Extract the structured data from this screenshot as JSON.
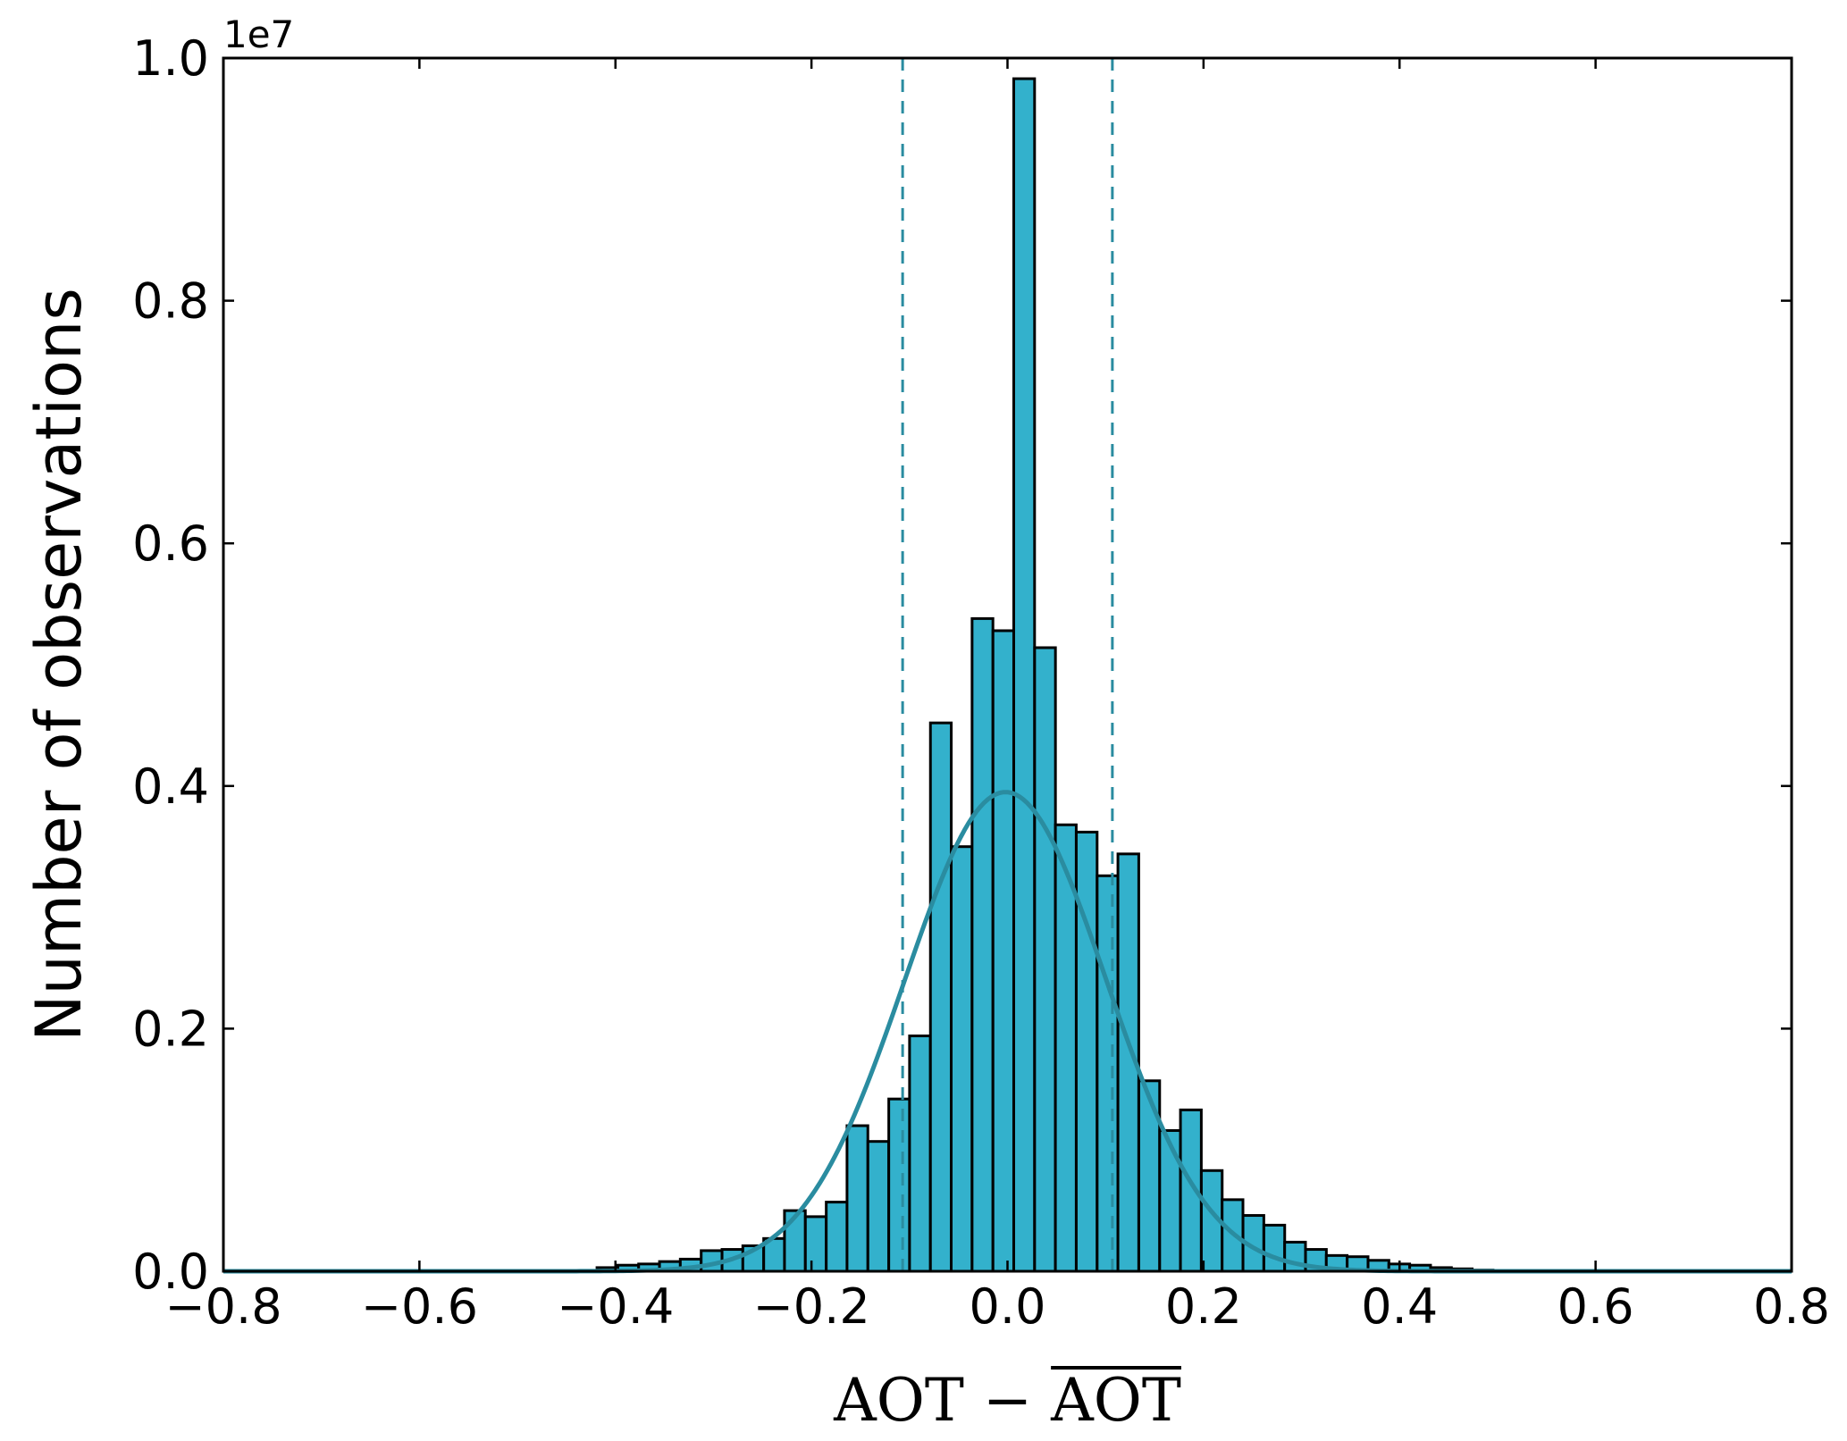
{
  "chart_data": {
    "type": "bar",
    "xlabel": "AOT − AOT",
    "xlabel_overline_part": "AOT",
    "ylabel": "Number of observations",
    "y_offset_label": "1e7",
    "y_scale": 10000000,
    "xlim": [
      -0.8,
      0.8
    ],
    "ylim": [
      0,
      1.0
    ],
    "xticks": [
      -0.8,
      -0.6,
      -0.4,
      -0.2,
      0.0,
      0.2,
      0.4,
      0.6,
      0.8
    ],
    "xtick_labels": [
      "−0.8",
      "−0.6",
      "−0.4",
      "−0.2",
      "0.0",
      "0.2",
      "0.4",
      "0.6",
      "0.8"
    ],
    "yticks": [
      0.0,
      0.2,
      0.4,
      0.6,
      0.8,
      1.0
    ],
    "ytick_labels": [
      "0.0",
      "0.2",
      "0.4",
      "0.6",
      "0.8",
      "1.0"
    ],
    "grid": false,
    "colors": {
      "bar_fill": "#33b1cc",
      "bar_edge": "#000000",
      "curve": "#2a8ca0",
      "dashed": "#2a8ca0"
    },
    "bin_width": 0.02126,
    "bins": [
      {
        "x": -0.4082,
        "y": 0.003
      },
      {
        "x": -0.3869,
        "y": 0.005
      },
      {
        "x": -0.3657,
        "y": 0.006
      },
      {
        "x": -0.3444,
        "y": 0.008
      },
      {
        "x": -0.3232,
        "y": 0.01
      },
      {
        "x": -0.3019,
        "y": 0.017
      },
      {
        "x": -0.2806,
        "y": 0.018
      },
      {
        "x": -0.2594,
        "y": 0.021
      },
      {
        "x": -0.2381,
        "y": 0.027
      },
      {
        "x": -0.2169,
        "y": 0.05
      },
      {
        "x": -0.1956,
        "y": 0.045
      },
      {
        "x": -0.1743,
        "y": 0.057
      },
      {
        "x": -0.1531,
        "y": 0.12
      },
      {
        "x": -0.1318,
        "y": 0.107
      },
      {
        "x": -0.1105,
        "y": 0.142
      },
      {
        "x": -0.0893,
        "y": 0.194
      },
      {
        "x": -0.068,
        "y": 0.452
      },
      {
        "x": -0.0468,
        "y": 0.35
      },
      {
        "x": -0.0255,
        "y": 0.538
      },
      {
        "x": -0.0042,
        "y": 0.528
      },
      {
        "x": 0.017,
        "y": 0.983
      },
      {
        "x": 0.0383,
        "y": 0.514
      },
      {
        "x": 0.0595,
        "y": 0.368
      },
      {
        "x": 0.0808,
        "y": 0.362
      },
      {
        "x": 0.1021,
        "y": 0.326
      },
      {
        "x": 0.1233,
        "y": 0.344
      },
      {
        "x": 0.1446,
        "y": 0.157
      },
      {
        "x": 0.1659,
        "y": 0.116
      },
      {
        "x": 0.1871,
        "y": 0.133
      },
      {
        "x": 0.2084,
        "y": 0.083
      },
      {
        "x": 0.2296,
        "y": 0.059
      },
      {
        "x": 0.2509,
        "y": 0.046
      },
      {
        "x": 0.2722,
        "y": 0.038
      },
      {
        "x": 0.2934,
        "y": 0.024
      },
      {
        "x": 0.3147,
        "y": 0.018
      },
      {
        "x": 0.3359,
        "y": 0.013
      },
      {
        "x": 0.3572,
        "y": 0.012
      },
      {
        "x": 0.3785,
        "y": 0.009
      },
      {
        "x": 0.3997,
        "y": 0.006
      },
      {
        "x": 0.421,
        "y": 0.005
      },
      {
        "x": 0.4423,
        "y": 0.003
      },
      {
        "x": 0.4635,
        "y": 0.002
      },
      {
        "x": 0.4848,
        "y": 0.001
      }
    ],
    "fit_curve": {
      "type": "gaussian",
      "mean": -0.002,
      "sigma": 0.103,
      "peak": 0.395,
      "x_range": [
        -0.8,
        0.8
      ]
    },
    "vlines": [
      -0.107,
      0.107
    ]
  }
}
